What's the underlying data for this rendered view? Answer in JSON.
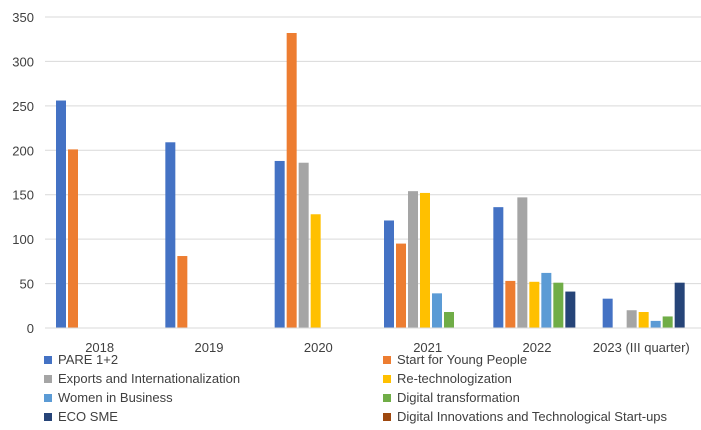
{
  "chart_data": {
    "type": "bar",
    "title": "",
    "xlabel": "",
    "ylabel": "",
    "ylim": [
      0,
      350
    ],
    "yticks": [
      0,
      50,
      100,
      150,
      200,
      250,
      300,
      350
    ],
    "grid": true,
    "legend_position": "bottom",
    "categories": [
      "2018",
      "2019",
      "2020",
      "2021",
      "2022",
      "2023 (III quarter)"
    ],
    "series": [
      {
        "name": "PARE 1+2",
        "color": "#4472C4",
        "values": [
          256,
          209,
          188,
          121,
          136,
          33
        ]
      },
      {
        "name": "Start for Young People",
        "color": "#ED7D31",
        "values": [
          201,
          81,
          332,
          95,
          53,
          null
        ]
      },
      {
        "name": "Exports and Internationalization",
        "color": "#A5A5A5",
        "values": [
          null,
          null,
          186,
          154,
          147,
          20
        ]
      },
      {
        "name": "Re-technologization",
        "color": "#FFC000",
        "values": [
          null,
          null,
          128,
          152,
          52,
          18
        ]
      },
      {
        "name": "Women in Business",
        "color": "#5B9BD5",
        "values": [
          null,
          null,
          null,
          39,
          62,
          8
        ]
      },
      {
        "name": "Digital transformation",
        "color": "#70AD47",
        "values": [
          null,
          null,
          null,
          18,
          51,
          13
        ]
      },
      {
        "name": "ECO SME",
        "color": "#264478",
        "values": [
          null,
          null,
          null,
          null,
          41,
          51
        ]
      },
      {
        "name": "Digital Innovations and Technological Start-ups",
        "color": "#9E480E",
        "values": [
          null,
          null,
          null,
          null,
          null,
          null
        ]
      }
    ]
  }
}
